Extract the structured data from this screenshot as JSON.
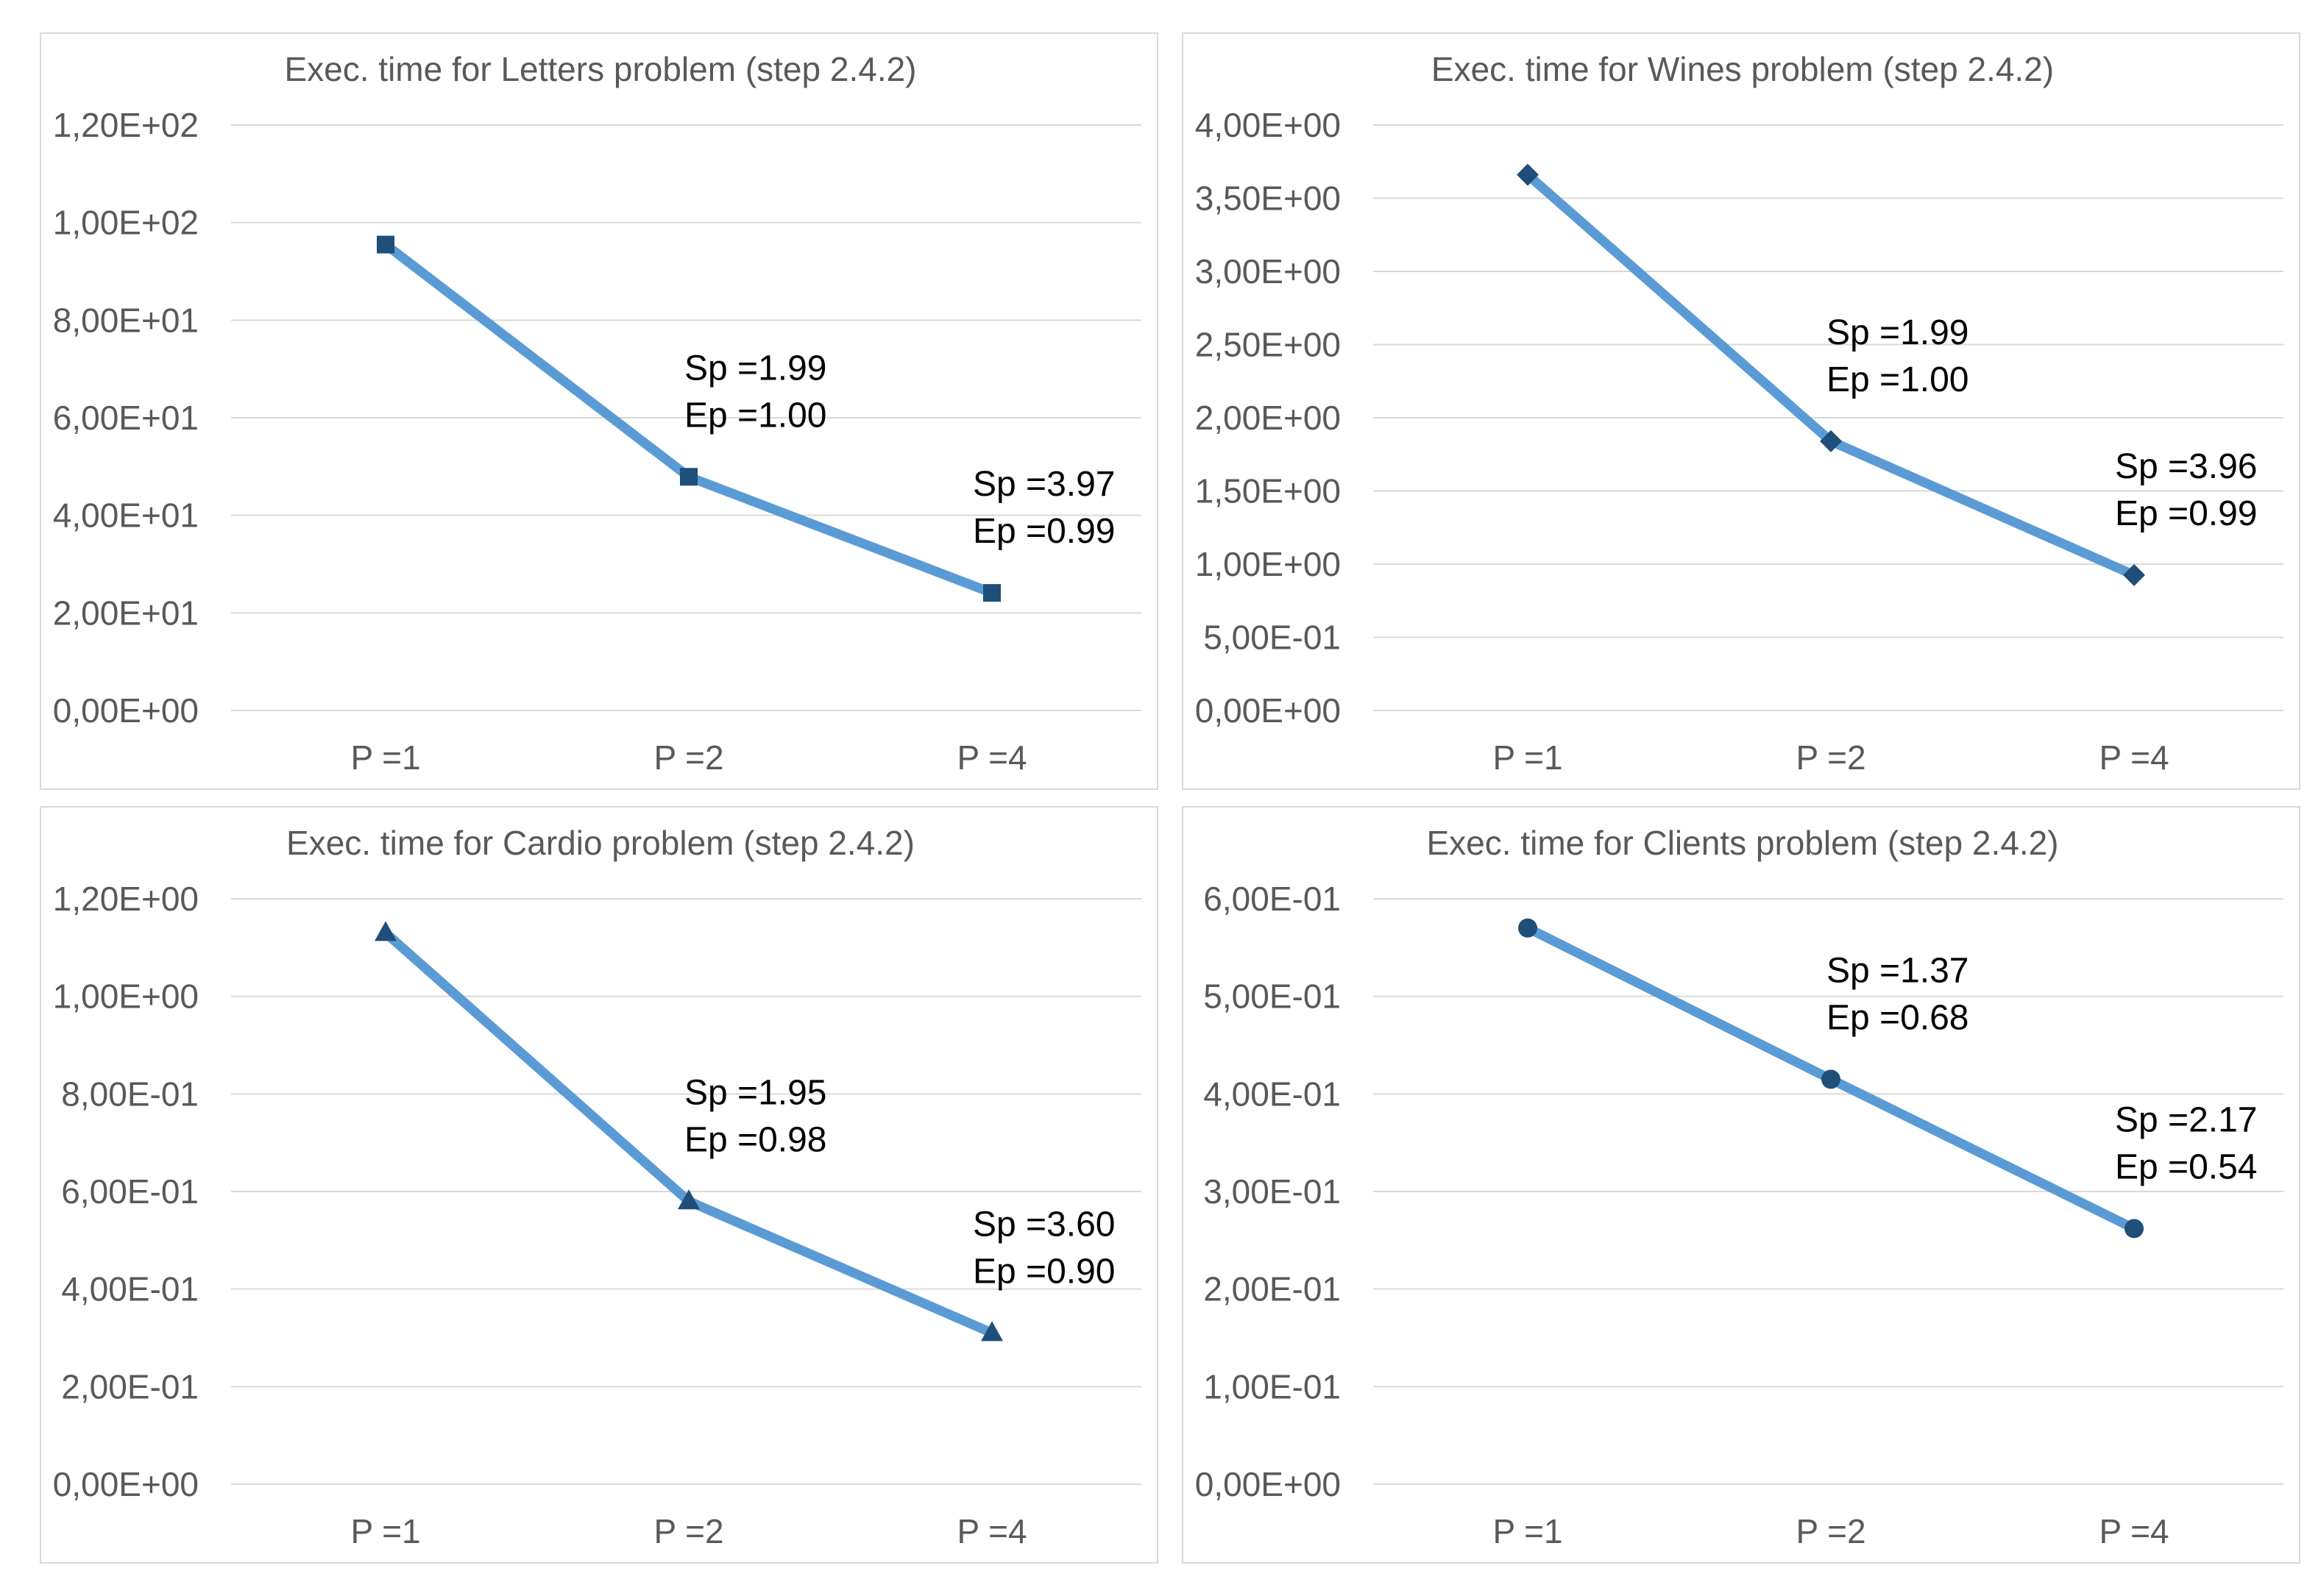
{
  "chart_data": [
    {
      "type": "line",
      "title": "Exec. time for Letters problem (step 2.4.2)",
      "categories": [
        "P =1",
        "P =2",
        "P =4"
      ],
      "values": [
        95.5,
        47.9,
        24.1
      ],
      "marker": "square",
      "ylim": [
        0,
        120
      ],
      "yticks": [
        0,
        20,
        40,
        60,
        80,
        100,
        120
      ],
      "ytick_labels": [
        "0,00E+00",
        "2,00E+01",
        "4,00E+01",
        "6,00E+01",
        "8,00E+01",
        "1,00E+02",
        "1,20E+02"
      ],
      "annotations": [
        {
          "index": 1,
          "sp": "Sp =1.99",
          "ep": "Ep =1.00"
        },
        {
          "index": 2,
          "sp": "Sp =3.97",
          "ep": "Ep =0.99"
        }
      ],
      "line_color": "#5b9bd5",
      "marker_color": "#1f4e79"
    },
    {
      "type": "line",
      "title": "Exec. time for Wines problem (step 2.4.2)",
      "categories": [
        "P =1",
        "P =2",
        "P =4"
      ],
      "values": [
        3.66,
        1.84,
        0.925
      ],
      "marker": "diamond",
      "ylim": [
        0,
        4
      ],
      "yticks": [
        0,
        0.5,
        1,
        1.5,
        2,
        2.5,
        3,
        3.5,
        4
      ],
      "ytick_labels": [
        "0,00E+00",
        "5,00E-01",
        "1,00E+00",
        "1,50E+00",
        "2,00E+00",
        "2,50E+00",
        "3,00E+00",
        "3,50E+00",
        "4,00E+00"
      ],
      "annotations": [
        {
          "index": 1,
          "sp": "Sp =1.99",
          "ep": "Ep =1.00"
        },
        {
          "index": 2,
          "sp": "Sp =3.96",
          "ep": "Ep =0.99"
        }
      ],
      "line_color": "#5b9bd5",
      "marker_color": "#1f4e79"
    },
    {
      "type": "line",
      "title": "Exec. time for Cardio problem (step 2.4.2)",
      "categories": [
        "P =1",
        "P =2",
        "P =4"
      ],
      "values": [
        1.13,
        0.58,
        0.31
      ],
      "marker": "triangle",
      "ylim": [
        0,
        1.2
      ],
      "yticks": [
        0,
        0.2,
        0.4,
        0.6,
        0.8,
        1.0,
        1.2
      ],
      "ytick_labels": [
        "0,00E+00",
        "2,00E-01",
        "4,00E-01",
        "6,00E-01",
        "8,00E-01",
        "1,00E+00",
        "1,20E+00"
      ],
      "annotations": [
        {
          "index": 1,
          "sp": "Sp =1.95",
          "ep": "Ep =0.98"
        },
        {
          "index": 2,
          "sp": "Sp =3.60",
          "ep": "Ep =0.90"
        }
      ],
      "line_color": "#5b9bd5",
      "marker_color": "#1f4e79"
    },
    {
      "type": "line",
      "title": "Exec. time for Clients problem (step 2.4.2)",
      "categories": [
        "P =1",
        "P =2",
        "P =4"
      ],
      "values": [
        0.57,
        0.415,
        0.262
      ],
      "marker": "circle",
      "ylim": [
        0,
        0.6
      ],
      "yticks": [
        0,
        0.1,
        0.2,
        0.3,
        0.4,
        0.5,
        0.6
      ],
      "ytick_labels": [
        "0,00E+00",
        "1,00E-01",
        "2,00E-01",
        "3,00E-01",
        "4,00E-01",
        "5,00E-01",
        "6,00E-01"
      ],
      "annotations": [
        {
          "index": 1,
          "sp": "Sp =1.37",
          "ep": "Ep =0.68"
        },
        {
          "index": 2,
          "sp": "Sp =2.17",
          "ep": "Ep =0.54"
        }
      ],
      "line_color": "#5b9bd5",
      "marker_color": "#1f4e79"
    }
  ]
}
